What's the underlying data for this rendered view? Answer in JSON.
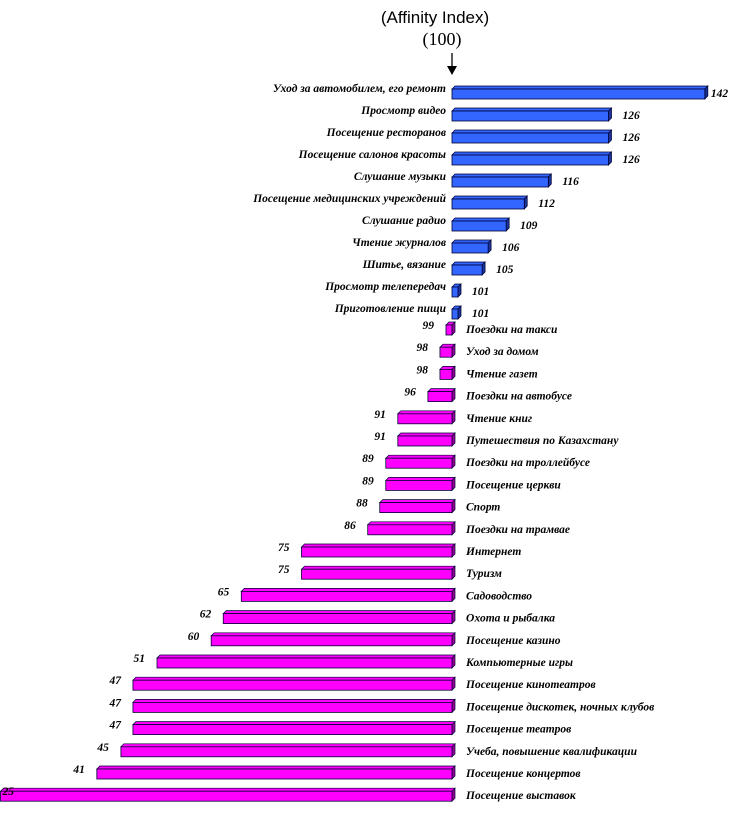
{
  "chart_data": {
    "type": "bar",
    "orientation": "horizontal",
    "title": "(Affinity Index)",
    "reference_label": "(100)",
    "reference_value": 100,
    "grid": false,
    "colors": {
      "above": "#3366ff",
      "below": "#ff00ff",
      "edge": "#000033"
    },
    "categories": [
      "Уход за автомобилем, его ремонт",
      "Просмотр видео",
      "Посещение ресторанов",
      "Посещение салонов красоты",
      "Слушание музыки",
      "Посещение медицинских учреждений",
      "Слушание радио",
      "Чтение журналов",
      "Шитье, вязание",
      "Просмотр телепередач",
      "Приготовление пищи",
      "Поездки на такси",
      "Уход за домом",
      "Чтение газет",
      "Поездки на автобусе",
      "Чтение книг",
      "Путешествия по Казахстану",
      "Поездки на троллейбусе",
      "Посещение церкви",
      "Спорт",
      "Поездки на трамвае",
      "Интернет",
      "Туризм",
      "Садоводство",
      "Охота и рыбалка",
      "Посещение казино",
      "Компьютерные игры",
      "Посещение кинотеатров",
      "Посещение дискотек, ночных клубов",
      "Посещение театров",
      "Учеба, повышение квалификации",
      "Посещение концертов",
      "Посещение выставок"
    ],
    "values": [
      142,
      126,
      126,
      126,
      116,
      112,
      109,
      106,
      105,
      101,
      101,
      99,
      98,
      98,
      96,
      91,
      91,
      89,
      89,
      88,
      86,
      75,
      75,
      65,
      62,
      60,
      51,
      47,
      47,
      47,
      45,
      41,
      25
    ]
  }
}
